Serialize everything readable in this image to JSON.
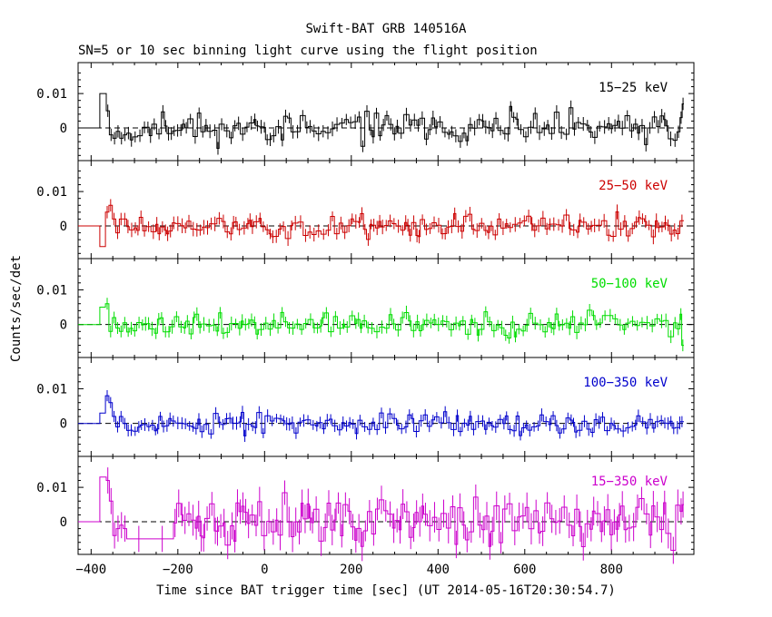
{
  "chart_data": {
    "type": "line",
    "title": "Swift-BAT GRB 140516A",
    "subtitle": "SN=5 or 10 sec binning light curve using the flight position",
    "xlabel": "Time since BAT trigger time [sec] (UT 2014-05-16T20:30:54.7)",
    "ylabel": "Counts/sec/det",
    "xlim": [
      -430,
      990
    ],
    "x_ticks": [
      -400,
      -200,
      0,
      200,
      400,
      600,
      800
    ],
    "x_tick_labels": [
      "−400",
      "−200",
      "0",
      "200",
      "400",
      "600",
      "800"
    ],
    "y_ticks": [
      0,
      0.01
    ],
    "y_tick_labels": [
      "0",
      "0.01"
    ],
    "grid": false,
    "panels": [
      {
        "name": "15−25 keV",
        "color": "#000000",
        "ylim": [
          -0.0095,
          0.019
        ],
        "pre": [
          [
            -430,
            -380,
            0.0
          ],
          [
            -380,
            -365,
            0.01
          ]
        ],
        "lead": [
          [
            -365,
            -358,
            0.005
          ],
          [
            -358,
            -350,
            -0.002
          ],
          [
            -350,
            -342,
            -0.003
          ],
          [
            -342,
            -334,
            -0.001
          ],
          [
            -334,
            -326,
            -0.003
          ],
          [
            -326,
            -318,
            -0.002
          ],
          [
            -318,
            -310,
            -0.0015
          ]
        ],
        "post": [
          [
            958,
            963,
            0.003
          ],
          [
            963,
            967,
            0.007
          ]
        ],
        "data_seed": 11,
        "data_noise": 0.0022,
        "data_err": 0.0018
      },
      {
        "name": "25−50 keV",
        "color": "#cc0000",
        "ylim": [
          -0.0095,
          0.019
        ],
        "pre": [
          [
            -430,
            -380,
            0.0
          ],
          [
            -380,
            -367,
            -0.006
          ]
        ],
        "lead": [
          [
            -367,
            -359,
            0.004
          ],
          [
            -359,
            -351,
            0.006
          ],
          [
            -351,
            -343,
            0.002
          ],
          [
            -343,
            -335,
            -0.002
          ],
          [
            -335,
            -327,
            0.002
          ],
          [
            -327,
            -318,
            0.002
          ]
        ],
        "post": [
          [
            958,
            967,
            0.0015
          ]
        ],
        "data_seed": 23,
        "data_noise": 0.0018,
        "data_err": 0.0018
      },
      {
        "name": "50−100 keV",
        "color": "#00dd00",
        "ylim": [
          -0.0095,
          0.019
        ],
        "pre": [
          [
            -430,
            -380,
            0.0
          ],
          [
            -380,
            -367,
            0.005
          ]
        ],
        "lead": [
          [
            -367,
            -359,
            0.006
          ],
          [
            -359,
            -351,
            -0.002
          ],
          [
            -351,
            -343,
            0.002
          ],
          [
            -343,
            -335,
            -0.001
          ],
          [
            -335,
            -327,
            -0.002
          ],
          [
            -327,
            -318,
            0.0005
          ]
        ],
        "post": [
          [
            958,
            962,
            0.003
          ],
          [
            962,
            967,
            -0.006
          ]
        ],
        "data_seed": 37,
        "data_noise": 0.0016,
        "data_err": 0.0017
      },
      {
        "name": "100−350 keV",
        "color": "#0000cc",
        "ylim": [
          -0.0095,
          0.019
        ],
        "pre": [
          [
            -430,
            -380,
            0.0
          ],
          [
            -380,
            -367,
            0.003
          ]
        ],
        "lead": [
          [
            -367,
            -359,
            0.008
          ],
          [
            -359,
            -351,
            0.006
          ],
          [
            -351,
            -343,
            0.002
          ],
          [
            -343,
            -335,
            -0.001
          ],
          [
            -335,
            -327,
            0.002
          ],
          [
            -327,
            -318,
            0.0
          ]
        ],
        "post": [
          [
            958,
            967,
            0.0005
          ]
        ],
        "data_seed": 53,
        "data_noise": 0.0015,
        "data_err": 0.0016
      },
      {
        "name": "15−350 keV",
        "color": "#cc00cc",
        "ylim": [
          -0.0095,
          0.019
        ],
        "pre": [
          [
            -430,
            -380,
            0.0
          ],
          [
            -380,
            -365,
            0.013
          ]
        ],
        "lead": [
          [
            -365,
            -358,
            0.012
          ],
          [
            -358,
            -350,
            0.006
          ],
          [
            -350,
            -342,
            -0.004
          ],
          [
            -342,
            -334,
            -0.002
          ],
          [
            -334,
            -326,
            -0.001
          ],
          [
            -326,
            -318,
            -0.002
          ],
          [
            -318,
            -262,
            -0.005
          ],
          [
            -262,
            -210,
            -0.005
          ]
        ],
        "post": [
          [
            958,
            963,
            0.003
          ],
          [
            963,
            967,
            0.005
          ]
        ],
        "data_seed": 71,
        "data_noise": 0.0035,
        "data_err": 0.0038
      }
    ]
  }
}
